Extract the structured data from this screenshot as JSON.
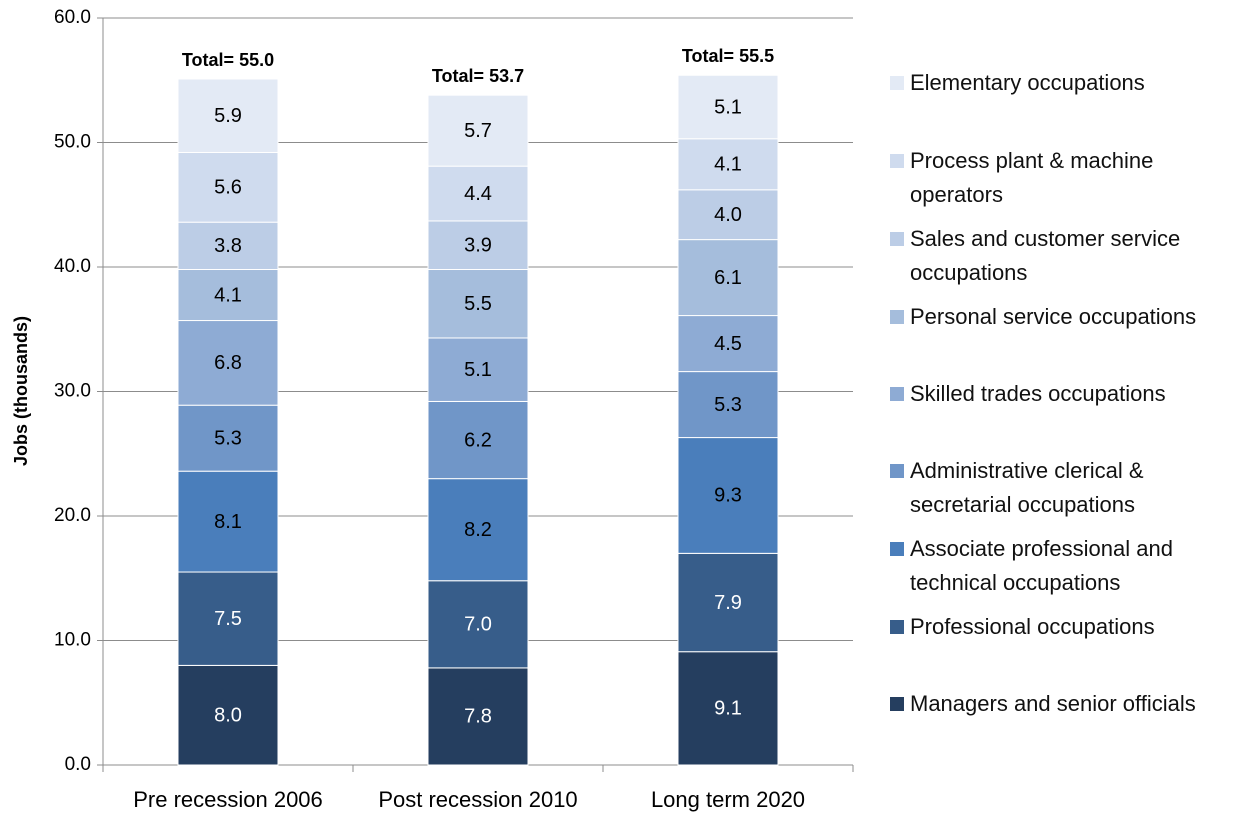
{
  "chart_data": {
    "type": "stacked_bar",
    "y_label": "Jobs (thousands)",
    "categories": [
      "Pre recession 2006",
      "Post recession 2010",
      "Long term 2020"
    ],
    "annotations": [
      "Total= 55.0",
      "Total= 53.7",
      "Total= 55.5"
    ],
    "ylim": [
      0,
      60
    ],
    "yticks": [
      {
        "value": 0,
        "label": "0.0"
      },
      {
        "value": 10,
        "label": "10.0"
      },
      {
        "value": 20,
        "label": "20.0"
      },
      {
        "value": 30,
        "label": "30.0"
      },
      {
        "value": 40,
        "label": "40.0"
      },
      {
        "value": 50,
        "label": "50.0"
      },
      {
        "value": 60,
        "label": "60.0"
      }
    ],
    "grid": true,
    "legend": "right",
    "series": [
      {
        "name": "Managers and senior officials",
        "color": "#253e5f",
        "values": [
          8.0,
          7.8,
          9.1
        ],
        "value_labels": [
          "8.0",
          "7.8",
          "9.1"
        ]
      },
      {
        "name": "Professional occupations",
        "color": "#375d8a",
        "values": [
          7.5,
          7.0,
          7.9
        ],
        "value_labels": [
          "7.5",
          "7.0",
          "7.9"
        ]
      },
      {
        "name": "Associate professional and technical occupations",
        "color": "#4a7ebb",
        "values": [
          8.1,
          8.2,
          9.3
        ],
        "value_labels": [
          "8.1",
          "8.2",
          "9.3"
        ]
      },
      {
        "name": "Administrative clerical & secretarial occupations",
        "color": "#7096c8",
        "values": [
          5.3,
          6.2,
          5.3
        ],
        "value_labels": [
          "5.3",
          "6.2",
          "5.3"
        ]
      },
      {
        "name": "Skilled trades occupations",
        "color": "#8eabd4",
        "values": [
          6.8,
          5.1,
          4.5
        ],
        "value_labels": [
          "6.8",
          "5.1",
          "4.5"
        ]
      },
      {
        "name": "Personal service occupations",
        "color": "#a5bddc",
        "values": [
          4.1,
          5.5,
          6.1
        ],
        "value_labels": [
          "4.1",
          "5.5",
          "6.1"
        ]
      },
      {
        "name": "Sales and customer service occupations",
        "color": "#bccde6",
        "values": [
          3.8,
          3.9,
          4.0
        ],
        "value_labels": [
          "3.8",
          "3.9",
          "4.0"
        ]
      },
      {
        "name": "Process plant & machine operators",
        "color": "#cfdbee",
        "values": [
          5.6,
          4.4,
          4.1
        ],
        "value_labels": [
          "5.6",
          "4.4",
          "4.1"
        ]
      },
      {
        "name": "Elementary occupations",
        "color": "#e3eaf5",
        "values": [
          5.9,
          5.7,
          5.1
        ],
        "value_labels": [
          "5.9",
          "5.7",
          "5.1"
        ]
      }
    ]
  }
}
